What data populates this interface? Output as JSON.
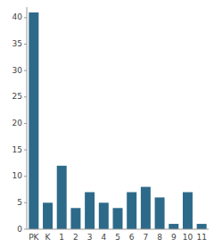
{
  "chart_data": {
    "type": "bar",
    "categories": [
      "PK",
      "K",
      "1",
      "2",
      "3",
      "4",
      "5",
      "6",
      "7",
      "8",
      "9",
      "10",
      "11"
    ],
    "values": [
      41,
      5,
      12,
      4,
      7,
      5,
      4,
      7,
      8,
      6,
      1,
      7,
      1
    ],
    "color": "#2d6a8a",
    "ylim": [
      0,
      42
    ],
    "yticks": [
      0,
      5,
      10,
      15,
      20,
      25,
      30,
      35,
      40
    ],
    "grid": false
  }
}
